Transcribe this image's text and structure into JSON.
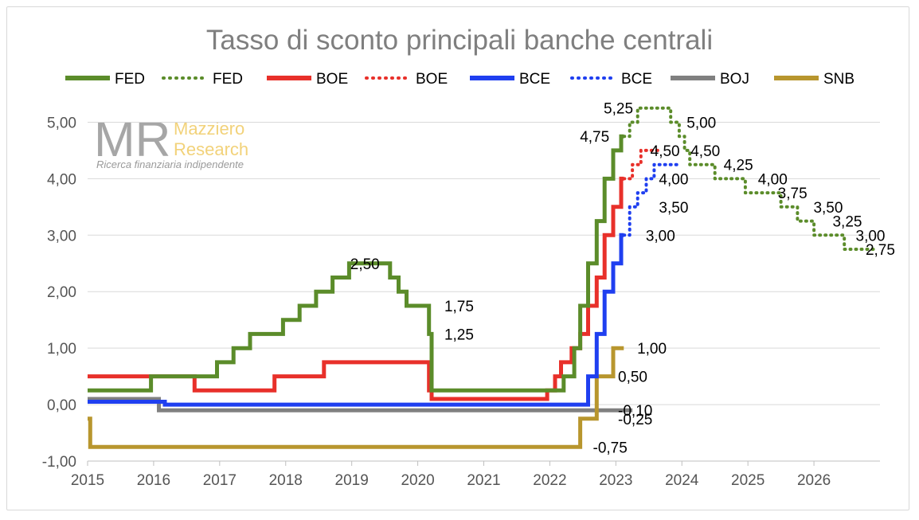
{
  "chart_data": {
    "type": "line",
    "title": "Tasso di sconto principali banche centrali",
    "xlim": [
      2015,
      2027
    ],
    "ylim": [
      -1,
      5.5
    ],
    "x_ticks": [
      2015,
      2016,
      2017,
      2018,
      2019,
      2020,
      2021,
      2022,
      2023,
      2024,
      2025,
      2026
    ],
    "x_tick_labels": [
      "2015",
      "2016",
      "2017",
      "2018",
      "2019",
      "2020",
      "2021",
      "2022",
      "2023",
      "2024",
      "2025",
      "2026"
    ],
    "y_ticks": [
      -1,
      0,
      1,
      2,
      3,
      4,
      5
    ],
    "y_tick_labels": [
      "-1,00",
      "0,00",
      "1,00",
      "2,00",
      "3,00",
      "4,00",
      "5,00"
    ],
    "grid": "horizontal",
    "legend_position": "top",
    "series": [
      {
        "name": "FED",
        "style": "solid",
        "color": "#5b8c2a",
        "points": [
          [
            2015.0,
            0.25
          ],
          [
            2015.96,
            0.25
          ],
          [
            2015.96,
            0.5
          ],
          [
            2016.96,
            0.5
          ],
          [
            2016.96,
            0.75
          ],
          [
            2017.21,
            0.75
          ],
          [
            2017.21,
            1.0
          ],
          [
            2017.46,
            1.0
          ],
          [
            2017.46,
            1.25
          ],
          [
            2017.96,
            1.25
          ],
          [
            2017.96,
            1.5
          ],
          [
            2018.21,
            1.5
          ],
          [
            2018.21,
            1.75
          ],
          [
            2018.46,
            1.75
          ],
          [
            2018.46,
            2.0
          ],
          [
            2018.71,
            2.0
          ],
          [
            2018.71,
            2.25
          ],
          [
            2018.96,
            2.25
          ],
          [
            2018.96,
            2.5
          ],
          [
            2019.58,
            2.5
          ],
          [
            2019.58,
            2.25
          ],
          [
            2019.71,
            2.25
          ],
          [
            2019.71,
            2.0
          ],
          [
            2019.83,
            2.0
          ],
          [
            2019.83,
            1.75
          ],
          [
            2020.17,
            1.75
          ],
          [
            2020.17,
            1.25
          ],
          [
            2020.21,
            1.25
          ],
          [
            2020.21,
            0.25
          ],
          [
            2022.21,
            0.25
          ],
          [
            2022.21,
            0.5
          ],
          [
            2022.37,
            0.5
          ],
          [
            2022.37,
            1.0
          ],
          [
            2022.46,
            1.0
          ],
          [
            2022.46,
            1.75
          ],
          [
            2022.58,
            1.75
          ],
          [
            2022.58,
            2.5
          ],
          [
            2022.71,
            2.5
          ],
          [
            2022.71,
            3.25
          ],
          [
            2022.83,
            3.25
          ],
          [
            2022.83,
            4.0
          ],
          [
            2022.96,
            4.0
          ],
          [
            2022.96,
            4.5
          ],
          [
            2023.08,
            4.5
          ],
          [
            2023.08,
            4.75
          ],
          [
            2023.12,
            4.75
          ]
        ]
      },
      {
        "name": "FED",
        "style": "dotted",
        "color": "#5b8c2a",
        "points": [
          [
            2023.12,
            4.75
          ],
          [
            2023.21,
            4.75
          ],
          [
            2023.21,
            5.0
          ],
          [
            2023.33,
            5.0
          ],
          [
            2023.33,
            5.25
          ],
          [
            2023.83,
            5.25
          ],
          [
            2023.83,
            5.0
          ],
          [
            2023.96,
            5.0
          ],
          [
            2023.96,
            4.75
          ],
          [
            2024.04,
            4.75
          ],
          [
            2024.04,
            4.5
          ],
          [
            2024.12,
            4.5
          ],
          [
            2024.12,
            4.25
          ],
          [
            2024.5,
            4.25
          ],
          [
            2024.5,
            4.0
          ],
          [
            2024.96,
            4.0
          ],
          [
            2024.96,
            3.75
          ],
          [
            2025.5,
            3.75
          ],
          [
            2025.5,
            3.5
          ],
          [
            2025.75,
            3.5
          ],
          [
            2025.75,
            3.25
          ],
          [
            2026.0,
            3.25
          ],
          [
            2026.0,
            3.0
          ],
          [
            2026.46,
            3.0
          ],
          [
            2026.46,
            2.75
          ],
          [
            2026.9,
            2.75
          ]
        ]
      },
      {
        "name": "BOE",
        "style": "solid",
        "color": "#e8302a",
        "points": [
          [
            2015.0,
            0.5
          ],
          [
            2016.62,
            0.5
          ],
          [
            2016.62,
            0.25
          ],
          [
            2017.83,
            0.25
          ],
          [
            2017.83,
            0.5
          ],
          [
            2018.58,
            0.5
          ],
          [
            2018.58,
            0.75
          ],
          [
            2020.17,
            0.75
          ],
          [
            2020.17,
            0.25
          ],
          [
            2020.21,
            0.25
          ],
          [
            2020.21,
            0.1
          ],
          [
            2021.96,
            0.1
          ],
          [
            2021.96,
            0.25
          ],
          [
            2022.08,
            0.25
          ],
          [
            2022.08,
            0.5
          ],
          [
            2022.17,
            0.5
          ],
          [
            2022.17,
            0.75
          ],
          [
            2022.33,
            0.75
          ],
          [
            2022.33,
            1.0
          ],
          [
            2022.46,
            1.0
          ],
          [
            2022.46,
            1.25
          ],
          [
            2022.58,
            1.25
          ],
          [
            2022.58,
            1.75
          ],
          [
            2022.71,
            1.75
          ],
          [
            2022.71,
            2.25
          ],
          [
            2022.83,
            2.25
          ],
          [
            2022.83,
            3.0
          ],
          [
            2022.96,
            3.0
          ],
          [
            2022.96,
            3.5
          ],
          [
            2023.08,
            3.5
          ],
          [
            2023.08,
            4.0
          ],
          [
            2023.12,
            4.0
          ]
        ]
      },
      {
        "name": "BOE",
        "style": "dotted",
        "color": "#e8302a",
        "points": [
          [
            2023.12,
            4.0
          ],
          [
            2023.25,
            4.0
          ],
          [
            2023.25,
            4.25
          ],
          [
            2023.38,
            4.25
          ],
          [
            2023.38,
            4.5
          ],
          [
            2023.65,
            4.5
          ]
        ]
      },
      {
        "name": "BCE",
        "style": "solid",
        "color": "#1f3ff0",
        "points": [
          [
            2015.0,
            0.05
          ],
          [
            2016.17,
            0.05
          ],
          [
            2016.17,
            0.0
          ],
          [
            2022.58,
            0.0
          ],
          [
            2022.58,
            0.5
          ],
          [
            2022.71,
            0.5
          ],
          [
            2022.71,
            1.25
          ],
          [
            2022.83,
            1.25
          ],
          [
            2022.83,
            2.0
          ],
          [
            2022.96,
            2.0
          ],
          [
            2022.96,
            2.5
          ],
          [
            2023.08,
            2.5
          ],
          [
            2023.08,
            3.0
          ],
          [
            2023.12,
            3.0
          ]
        ]
      },
      {
        "name": "BCE",
        "style": "dotted",
        "color": "#1f3ff0",
        "points": [
          [
            2023.12,
            3.0
          ],
          [
            2023.21,
            3.0
          ],
          [
            2023.21,
            3.5
          ],
          [
            2023.33,
            3.5
          ],
          [
            2023.33,
            3.75
          ],
          [
            2023.46,
            3.75
          ],
          [
            2023.46,
            4.0
          ],
          [
            2023.58,
            4.0
          ],
          [
            2023.58,
            4.25
          ],
          [
            2023.95,
            4.25
          ]
        ]
      },
      {
        "name": "BOJ",
        "style": "solid",
        "color": "#808080",
        "points": [
          [
            2015.0,
            0.1
          ],
          [
            2016.08,
            0.1
          ],
          [
            2016.08,
            -0.1
          ],
          [
            2023.25,
            -0.1
          ]
        ]
      },
      {
        "name": "SNB",
        "style": "solid",
        "color": "#b8962e",
        "points": [
          [
            2015.0,
            -0.25
          ],
          [
            2015.04,
            -0.25
          ],
          [
            2015.04,
            -0.75
          ],
          [
            2022.46,
            -0.75
          ],
          [
            2022.46,
            -0.25
          ],
          [
            2022.71,
            -0.25
          ],
          [
            2022.71,
            0.5
          ],
          [
            2022.96,
            0.5
          ],
          [
            2022.96,
            1.0
          ],
          [
            2023.12,
            1.0
          ]
        ]
      }
    ],
    "annotations": [
      {
        "text": "5,25",
        "x": 2023.31,
        "y": 5.25,
        "anchor": "end"
      },
      {
        "text": "5,00",
        "x": 2024.0,
        "y": 5.0,
        "anchor": "start"
      },
      {
        "text": "4,75",
        "x": 2022.95,
        "y": 4.75,
        "anchor": "end"
      },
      {
        "text": "4,50",
        "x": 2023.45,
        "y": 4.5,
        "anchor": "start"
      },
      {
        "text": "4,50",
        "x": 2024.06,
        "y": 4.5,
        "anchor": "start"
      },
      {
        "text": "4,25",
        "x": 2024.56,
        "y": 4.25,
        "anchor": "start"
      },
      {
        "text": "4,00",
        "x": 2023.58,
        "y": 4.0,
        "anchor": "start"
      },
      {
        "text": "4,00",
        "x": 2025.08,
        "y": 4.0,
        "anchor": "start"
      },
      {
        "text": "3,75",
        "x": 2025.38,
        "y": 3.75,
        "anchor": "start"
      },
      {
        "text": "3,50",
        "x": 2023.58,
        "y": 3.5,
        "anchor": "start"
      },
      {
        "text": "3,50",
        "x": 2025.92,
        "y": 3.5,
        "anchor": "start"
      },
      {
        "text": "3,25",
        "x": 2026.21,
        "y": 3.25,
        "anchor": "start"
      },
      {
        "text": "3,00",
        "x": 2023.38,
        "y": 3.0,
        "anchor": "start"
      },
      {
        "text": "3,00",
        "x": 2026.56,
        "y": 3.0,
        "anchor": "start"
      },
      {
        "text": "2,75",
        "x": 2026.71,
        "y": 2.75,
        "anchor": "start"
      },
      {
        "text": "2,50",
        "x": 2019.2,
        "y": 2.5,
        "anchor": "middle"
      },
      {
        "text": "1,75",
        "x": 2020.33,
        "y": 1.75,
        "anchor": "start"
      },
      {
        "text": "1,25",
        "x": 2020.33,
        "y": 1.25,
        "anchor": "start"
      },
      {
        "text": "1,00",
        "x": 2023.25,
        "y": 1.0,
        "anchor": "start"
      },
      {
        "text": "0,50",
        "x": 2022.96,
        "y": 0.5,
        "anchor": "start"
      },
      {
        "text": "-0,10",
        "x": 2022.96,
        "y": -0.1,
        "anchor": "start"
      },
      {
        "text": "-0,25",
        "x": 2022.96,
        "y": -0.25,
        "anchor": "start"
      },
      {
        "text": "-0,75",
        "x": 2022.58,
        "y": -0.75,
        "anchor": "start"
      }
    ]
  },
  "watermark": {
    "monogram": "MR",
    "name_line1": "Mazziero",
    "name_line2": "Research",
    "tagline": "Ricerca finanziaria indipendente"
  }
}
